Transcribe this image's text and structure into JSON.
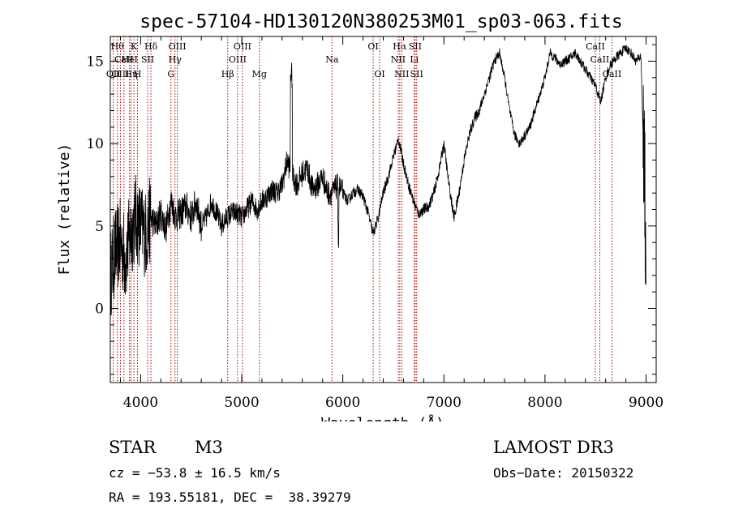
{
  "chart_data": {
    "type": "line",
    "title": "spec-57104-HD130120N380253M01_sp03-063.fits",
    "xlabel": "Wavelength (Å)",
    "ylabel": "Flux (relative)",
    "xlim": [
      3700,
      9100
    ],
    "ylim": [
      -4.5,
      16.5
    ],
    "xticks": [
      4000,
      5000,
      6000,
      7000,
      8000,
      9000
    ],
    "yticks": [
      0,
      5,
      10,
      15
    ],
    "x_tick_labels": [
      "4000",
      "5000",
      "6000",
      "7000",
      "8000",
      "9000"
    ],
    "y_tick_labels": [
      "0",
      "5",
      "10",
      "15"
    ],
    "grid": false,
    "series": [
      {
        "x": [
          3700,
          3750,
          3800,
          3850,
          3900,
          3950,
          4000,
          4050,
          4100,
          4150,
          4200,
          4250,
          4300,
          4350,
          4400,
          4450,
          4500,
          4550,
          4600,
          4650,
          4700,
          4750,
          4800,
          4850,
          4900,
          4950,
          5000,
          5050,
          5100,
          5150,
          5200,
          5250,
          5300,
          5350,
          5400,
          5450,
          5500,
          5550,
          5600,
          5650,
          5700,
          5750,
          5800,
          5850,
          5900,
          5950,
          6000,
          6050,
          6100,
          6150,
          6200,
          6250,
          6300,
          6350,
          6400,
          6450,
          6500,
          6550,
          6600,
          6650,
          6700,
          6750,
          6800,
          6850,
          6900,
          6950,
          7000,
          7050,
          7100,
          7150,
          7200,
          7250,
          7300,
          7350,
          7400,
          7450,
          7500,
          7550,
          7600,
          7650,
          7700,
          7750,
          7800,
          7850,
          7900,
          7950,
          8000,
          8050,
          8100,
          8150,
          8200,
          8250,
          8300,
          8350,
          8400,
          8450,
          8500,
          8550,
          8600,
          8650,
          8700,
          8750,
          8800,
          8850,
          8900,
          8950,
          9000
        ],
        "values": [
          2.0,
          3.5,
          4.0,
          3.0,
          4.5,
          5.5,
          5.0,
          4.5,
          5.5,
          5.0,
          5.8,
          4.8,
          6.5,
          5.5,
          5.8,
          6.2,
          5.5,
          6.5,
          5.0,
          5.5,
          6.5,
          5.8,
          5.0,
          5.5,
          5.8,
          5.8,
          5.5,
          6.0,
          6.5,
          6.0,
          6.5,
          6.8,
          7.2,
          7.0,
          7.5,
          9.0,
          8.0,
          7.5,
          8.2,
          8.5,
          7.2,
          7.5,
          8.0,
          7.0,
          7.0,
          7.5,
          7.0,
          6.5,
          7.0,
          7.2,
          6.8,
          5.8,
          4.5,
          5.5,
          7.0,
          8.0,
          9.2,
          10.3,
          8.8,
          7.5,
          6.5,
          5.7,
          6.0,
          6.2,
          7.0,
          8.3,
          10.0,
          7.5,
          5.5,
          7.0,
          9.0,
          10.5,
          11.5,
          12.0,
          13.0,
          14.0,
          15.0,
          15.5,
          14.0,
          12.0,
          10.5,
          10.0,
          10.5,
          11.0,
          12.0,
          13.0,
          14.0,
          15.5,
          15.2,
          14.8,
          15.0,
          15.2,
          15.5,
          15.0,
          14.5,
          14.0,
          13.5,
          12.5,
          14.0,
          14.8,
          15.2,
          15.5,
          15.8,
          15.5,
          15.0,
          15.3,
          3.5
        ]
      }
    ],
    "lines": [
      {
        "x": 3730,
        "label": "OII",
        "row": 2
      },
      {
        "x": 3770,
        "label": "Hθ",
        "row": 0
      },
      {
        "x": 3800,
        "label": "OIII",
        "row": 2
      },
      {
        "x": 3835,
        "label": "CaII",
        "row": 1
      },
      {
        "x": 3890,
        "label": "HeI",
        "row": 1
      },
      {
        "x": 3905,
        "label": "Hη",
        "row": 2
      },
      {
        "x": 3934,
        "label": "K",
        "row": 0
      },
      {
        "x": 3969,
        "label": "H",
        "row": 2
      },
      {
        "x": 4070,
        "label": "SII",
        "row": 1
      },
      {
        "x": 4102,
        "label": "Hδ",
        "row": 0
      },
      {
        "x": 4300,
        "label": "G",
        "row": 2
      },
      {
        "x": 4340,
        "label": "Hγ",
        "row": 1
      },
      {
        "x": 4363,
        "label": "OIII",
        "row": 0
      },
      {
        "x": 4861,
        "label": "Hβ",
        "row": 2
      },
      {
        "x": 4959,
        "label": "OIII",
        "row": 1
      },
      {
        "x": 5007,
        "label": "OIII",
        "row": 0
      },
      {
        "x": 5175,
        "label": "Mg",
        "row": 2
      },
      {
        "x": 5893,
        "label": "Na",
        "row": 1
      },
      {
        "x": 6300,
        "label": "OI",
        "row": 0
      },
      {
        "x": 6364,
        "label": "OI",
        "row": 2
      },
      {
        "x": 6548,
        "label": "NII",
        "row": 1
      },
      {
        "x": 6563,
        "label": "Hα",
        "row": 0
      },
      {
        "x": 6583,
        "label": "NII",
        "row": 2
      },
      {
        "x": 6707,
        "label": "Li",
        "row": 1
      },
      {
        "x": 6716,
        "label": "SII",
        "row": 0
      },
      {
        "x": 6731,
        "label": "SII",
        "row": 2
      },
      {
        "x": 8498,
        "label": "CaII",
        "row": 0
      },
      {
        "x": 8542,
        "label": "CaII",
        "row": 1
      },
      {
        "x": 8662,
        "label": "CaII",
        "row": 2
      }
    ]
  },
  "info": {
    "class": "STAR",
    "subclass": "M3",
    "survey": "LAMOST DR3",
    "cz": "cz = −53.8 ± 16.5 km/s",
    "obs_date": "Obs−Date: 20150322",
    "coords": "RA = 193.55181, DEC =  38.39279"
  },
  "colors": {
    "spectrum": "#000000",
    "line_markers": "#b00000",
    "axes": "#000000"
  }
}
